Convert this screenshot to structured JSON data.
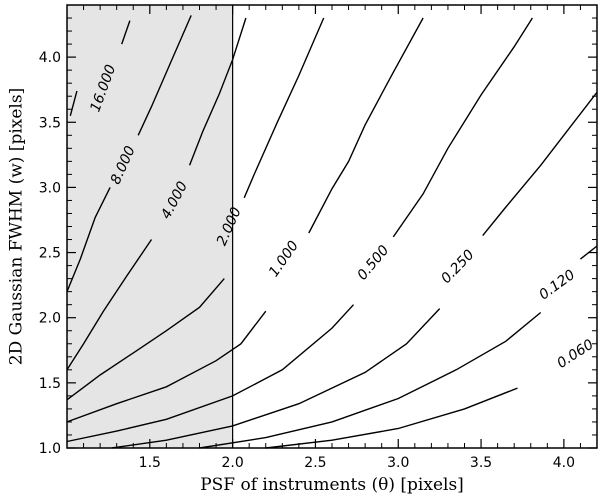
{
  "chart_data": {
    "type": "contour",
    "xlabel": "PSF of instruments (θ) [pixels]",
    "ylabel": "2D Gaussian FWHM (w) [pixels]",
    "xlim": [
      1.0,
      4.2
    ],
    "ylim": [
      1.0,
      4.4
    ],
    "x_ticks": [
      1.5,
      2.0,
      2.5,
      3.0,
      3.5,
      4.0
    ],
    "x_tick_labels": [
      "1.5",
      "2.0",
      "2.5",
      "3.0",
      "3.5",
      "4.0"
    ],
    "y_ticks": [
      1.0,
      1.5,
      2.0,
      2.5,
      3.0,
      3.5,
      4.0
    ],
    "y_tick_labels": [
      "1.0",
      "1.5",
      "2.0",
      "2.5",
      "3.0",
      "3.5",
      "4.0"
    ],
    "grid": false,
    "shaded_region": {
      "x_from": 1.0,
      "x_to": 2.0,
      "color": "#e5e5e5"
    },
    "vertical_line_x": 2.0,
    "contours": [
      {
        "level": "16.000",
        "label": "16.000",
        "label_at": [
          1.22,
          3.76
        ],
        "label_angle": -70,
        "segments": [
          [
            [
              1.02,
              3.55
            ],
            [
              1.06,
              3.74
            ]
          ],
          [
            [
              1.33,
              4.1
            ],
            [
              1.38,
              4.28
            ]
          ]
        ]
      },
      {
        "level": "8.000",
        "label": "8.000",
        "label_at": [
          1.34,
          3.17
        ],
        "label_angle": -66,
        "segments": [
          [
            [
              1.0,
              2.2
            ],
            [
              1.08,
              2.45
            ],
            [
              1.17,
              2.77
            ],
            [
              1.26,
              3.0
            ]
          ],
          [
            [
              1.43,
              3.4
            ],
            [
              1.51,
              3.62
            ],
            [
              1.63,
              3.97
            ],
            [
              1.75,
              4.32
            ]
          ]
        ]
      },
      {
        "level": "4.000",
        "label": "4.000",
        "label_at": [
          1.65,
          2.9
        ],
        "label_angle": -62,
        "segments": [
          [
            [
              1.0,
              1.6
            ],
            [
              1.1,
              1.8
            ],
            [
              1.22,
              2.05
            ],
            [
              1.35,
              2.3
            ],
            [
              1.51,
              2.6
            ]
          ],
          [
            [
              1.74,
              3.17
            ],
            [
              1.82,
              3.43
            ],
            [
              1.92,
              3.72
            ],
            [
              2.0,
              3.98
            ],
            [
              2.08,
              4.3
            ]
          ]
        ]
      },
      {
        "level": "2.000",
        "label": "2.000",
        "label_at": [
          1.98,
          2.7
        ],
        "label_angle": -66,
        "segments": [
          [
            [
              1.0,
              1.37
            ],
            [
              1.2,
              1.56
            ],
            [
              1.4,
              1.73
            ],
            [
              1.6,
              1.9
            ],
            [
              1.8,
              2.08
            ],
            [
              1.95,
              2.3
            ]
          ],
          [
            [
              2.07,
              2.92
            ],
            [
              2.13,
              3.1
            ],
            [
              2.27,
              3.5
            ],
            [
              2.4,
              3.86
            ],
            [
              2.55,
              4.3
            ]
          ]
        ]
      },
      {
        "level": "1.000",
        "label": "1.000",
        "label_at": [
          2.31,
          2.45
        ],
        "label_angle": -55,
        "segments": [
          [
            [
              1.0,
              1.2
            ],
            [
              1.3,
              1.34
            ],
            [
              1.6,
              1.47
            ],
            [
              1.9,
              1.67
            ],
            [
              2.05,
              1.8
            ],
            [
              2.2,
              2.05
            ]
          ],
          [
            [
              2.46,
              2.65
            ],
            [
              2.6,
              2.99
            ],
            [
              2.7,
              3.2
            ],
            [
              2.8,
              3.48
            ],
            [
              2.96,
              3.86
            ],
            [
              3.15,
              4.3
            ]
          ]
        ]
      },
      {
        "level": "0.500",
        "label": "0.500",
        "label_at": [
          2.85,
          2.42
        ],
        "label_angle": -50,
        "segments": [
          [
            [
              1.0,
              1.05
            ],
            [
              1.3,
              1.13
            ],
            [
              1.6,
              1.22
            ],
            [
              2.0,
              1.4
            ],
            [
              2.3,
              1.6
            ],
            [
              2.6,
              1.92
            ],
            [
              2.73,
              2.1
            ]
          ],
          [
            [
              2.97,
              2.62
            ],
            [
              3.15,
              2.95
            ],
            [
              3.3,
              3.3
            ],
            [
              3.5,
              3.71
            ],
            [
              3.7,
              4.08
            ],
            [
              3.81,
              4.3
            ]
          ]
        ]
      },
      {
        "level": "0.250",
        "label": "0.250",
        "label_at": [
          3.36,
          2.39
        ],
        "label_angle": -46,
        "segments": [
          [
            [
              1.27,
              1.0
            ],
            [
              1.6,
              1.06
            ],
            [
              2.0,
              1.17
            ],
            [
              2.4,
              1.34
            ],
            [
              2.8,
              1.58
            ],
            [
              3.05,
              1.8
            ],
            [
              3.25,
              2.07
            ]
          ],
          [
            [
              3.51,
              2.63
            ],
            [
              3.65,
              2.85
            ],
            [
              3.86,
              3.17
            ],
            [
              4.03,
              3.45
            ],
            [
              4.2,
              3.73
            ]
          ]
        ]
      },
      {
        "level": "0.120",
        "label": "0.120",
        "label_at": [
          3.96,
          2.25
        ],
        "label_angle": -36,
        "segments": [
          [
            [
              1.8,
              1.0
            ],
            [
              2.2,
              1.08
            ],
            [
              2.6,
              1.2
            ],
            [
              3.0,
              1.38
            ],
            [
              3.35,
              1.6
            ],
            [
              3.65,
              1.82
            ],
            [
              3.86,
              2.04
            ]
          ],
          [
            [
              4.1,
              2.45
            ],
            [
              4.2,
              2.55
            ]
          ]
        ]
      },
      {
        "level": "0.060",
        "label": "0.060",
        "label_at": [
          4.07,
          1.72
        ],
        "label_angle": -33,
        "segments": [
          [
            [
              2.2,
              1.0
            ],
            [
              2.6,
              1.06
            ],
            [
              3.0,
              1.15
            ],
            [
              3.4,
              1.3
            ],
            [
              3.72,
              1.46
            ]
          ]
        ]
      }
    ]
  }
}
